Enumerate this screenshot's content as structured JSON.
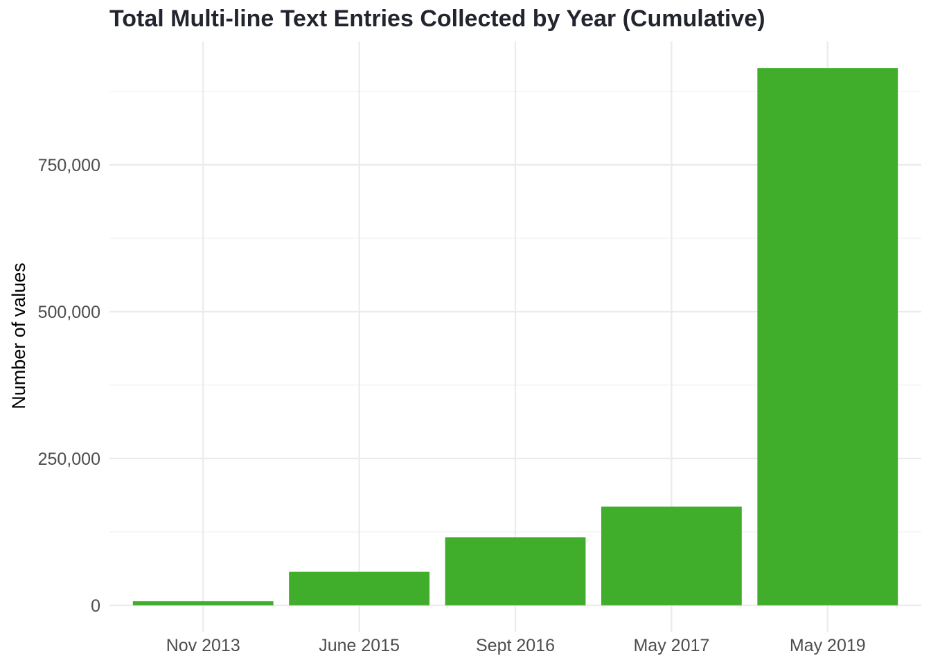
{
  "chart_data": {
    "type": "bar",
    "title": "Total Multi-line Text Entries Collected by Year (Cumulative)",
    "xlabel": "",
    "ylabel": "Number of values",
    "categories": [
      "Nov 2013",
      "June 2015",
      "Sept 2016",
      "May 2017",
      "May 2019"
    ],
    "values": [
      7000,
      57000,
      116000,
      168000,
      915000
    ],
    "ylim": [
      -45000,
      960000
    ],
    "y_ticks": [
      0,
      250000,
      500000,
      750000
    ],
    "y_tick_labels": [
      "0",
      "250,000",
      "500,000",
      "750,000"
    ],
    "y_minor_ticks": [
      125000,
      375000,
      625000,
      875000
    ],
    "grid": true,
    "legend": "none",
    "bar_color": "#40ae2b",
    "background_color": "#ffffff",
    "grid_color": "#ebebeb"
  }
}
